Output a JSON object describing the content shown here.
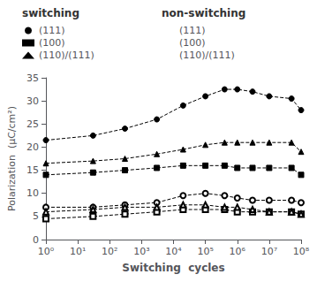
{
  "chart_data": {
    "type": "line",
    "title": "",
    "xlabel": "Switching  cycles",
    "ylabel": "Polarization  (μC/cm²)",
    "log": "x",
    "xlim": [
      1,
      100000000
    ],
    "xticks": [
      {
        "value": 1,
        "label": "10⁰"
      },
      {
        "value": 10,
        "label": "10¹"
      },
      {
        "value": 100,
        "label": "10²"
      },
      {
        "value": 1000,
        "label": "10³"
      },
      {
        "value": 10000,
        "label": "10⁴"
      },
      {
        "value": 100000,
        "label": "10⁵"
      },
      {
        "value": 1000000,
        "label": "10⁶"
      },
      {
        "value": 10000000,
        "label": "10⁷"
      },
      {
        "value": 100000000,
        "label": "10⁸"
      }
    ],
    "ylim": [
      0,
      35
    ],
    "yticks": [
      0,
      5,
      10,
      15,
      20,
      25,
      30,
      35
    ],
    "grid": false,
    "color": "#000000",
    "line_style": "dashed",
    "annotations": [
      "switching",
      "non-switching"
    ],
    "series": [
      {
        "name": "(111)",
        "marker": "circle",
        "x": [
          1,
          30,
          300,
          3000,
          20000,
          100000,
          400000,
          1000000,
          3000000,
          10000000,
          50000000,
          100000000
        ],
        "values": [
          21.5,
          22.5,
          24.0,
          26.0,
          29.0,
          31.0,
          32.5,
          32.5,
          32.0,
          31.0,
          30.5,
          28.0
        ]
      },
      {
        "name": "(100)",
        "marker": "rect",
        "x": [
          1,
          30,
          300,
          3000,
          20000,
          100000,
          400000,
          1000000,
          3000000,
          10000000,
          50000000,
          100000000
        ],
        "values": [
          14.0,
          14.5,
          15.0,
          15.5,
          16.0,
          16.0,
          16.0,
          15.5,
          15.5,
          15.5,
          15.5,
          14.0
        ]
      },
      {
        "name": "(110)/(111)",
        "marker": "triangle",
        "x": [
          1,
          30,
          300,
          3000,
          20000,
          100000,
          400000,
          1000000,
          3000000,
          10000000,
          50000000,
          100000000
        ],
        "values": [
          16.5,
          17.0,
          17.5,
          18.5,
          19.5,
          20.5,
          21.0,
          21.0,
          21.0,
          21.0,
          21.0,
          19.0
        ]
      },
      {
        "name": "(111)",
        "marker": "emptyCircle",
        "x": [
          1,
          30,
          300,
          3000,
          20000,
          100000,
          400000,
          1000000,
          3000000,
          10000000,
          50000000,
          100000000
        ],
        "values": [
          7.0,
          7.0,
          7.5,
          8.0,
          9.5,
          10.0,
          9.5,
          9.0,
          8.5,
          8.5,
          8.5,
          8.0
        ]
      },
      {
        "name": "(100)",
        "marker": "emptyRect",
        "x": [
          1,
          30,
          300,
          3000,
          20000,
          100000,
          400000,
          1000000,
          3000000,
          10000000,
          50000000,
          100000000
        ],
        "values": [
          4.5,
          5.0,
          5.5,
          6.0,
          6.5,
          6.5,
          6.5,
          6.0,
          6.0,
          6.0,
          6.0,
          5.5
        ]
      },
      {
        "name": "(110)/(111)",
        "marker": "emptyTriangle",
        "x": [
          1,
          30,
          300,
          3000,
          20000,
          100000,
          400000,
          1000000,
          3000000,
          10000000,
          50000000,
          100000000
        ],
        "values": [
          6.0,
          6.5,
          7.0,
          7.0,
          7.5,
          7.5,
          7.0,
          7.0,
          6.5,
          6.0,
          6.0,
          5.5
        ]
      }
    ]
  }
}
